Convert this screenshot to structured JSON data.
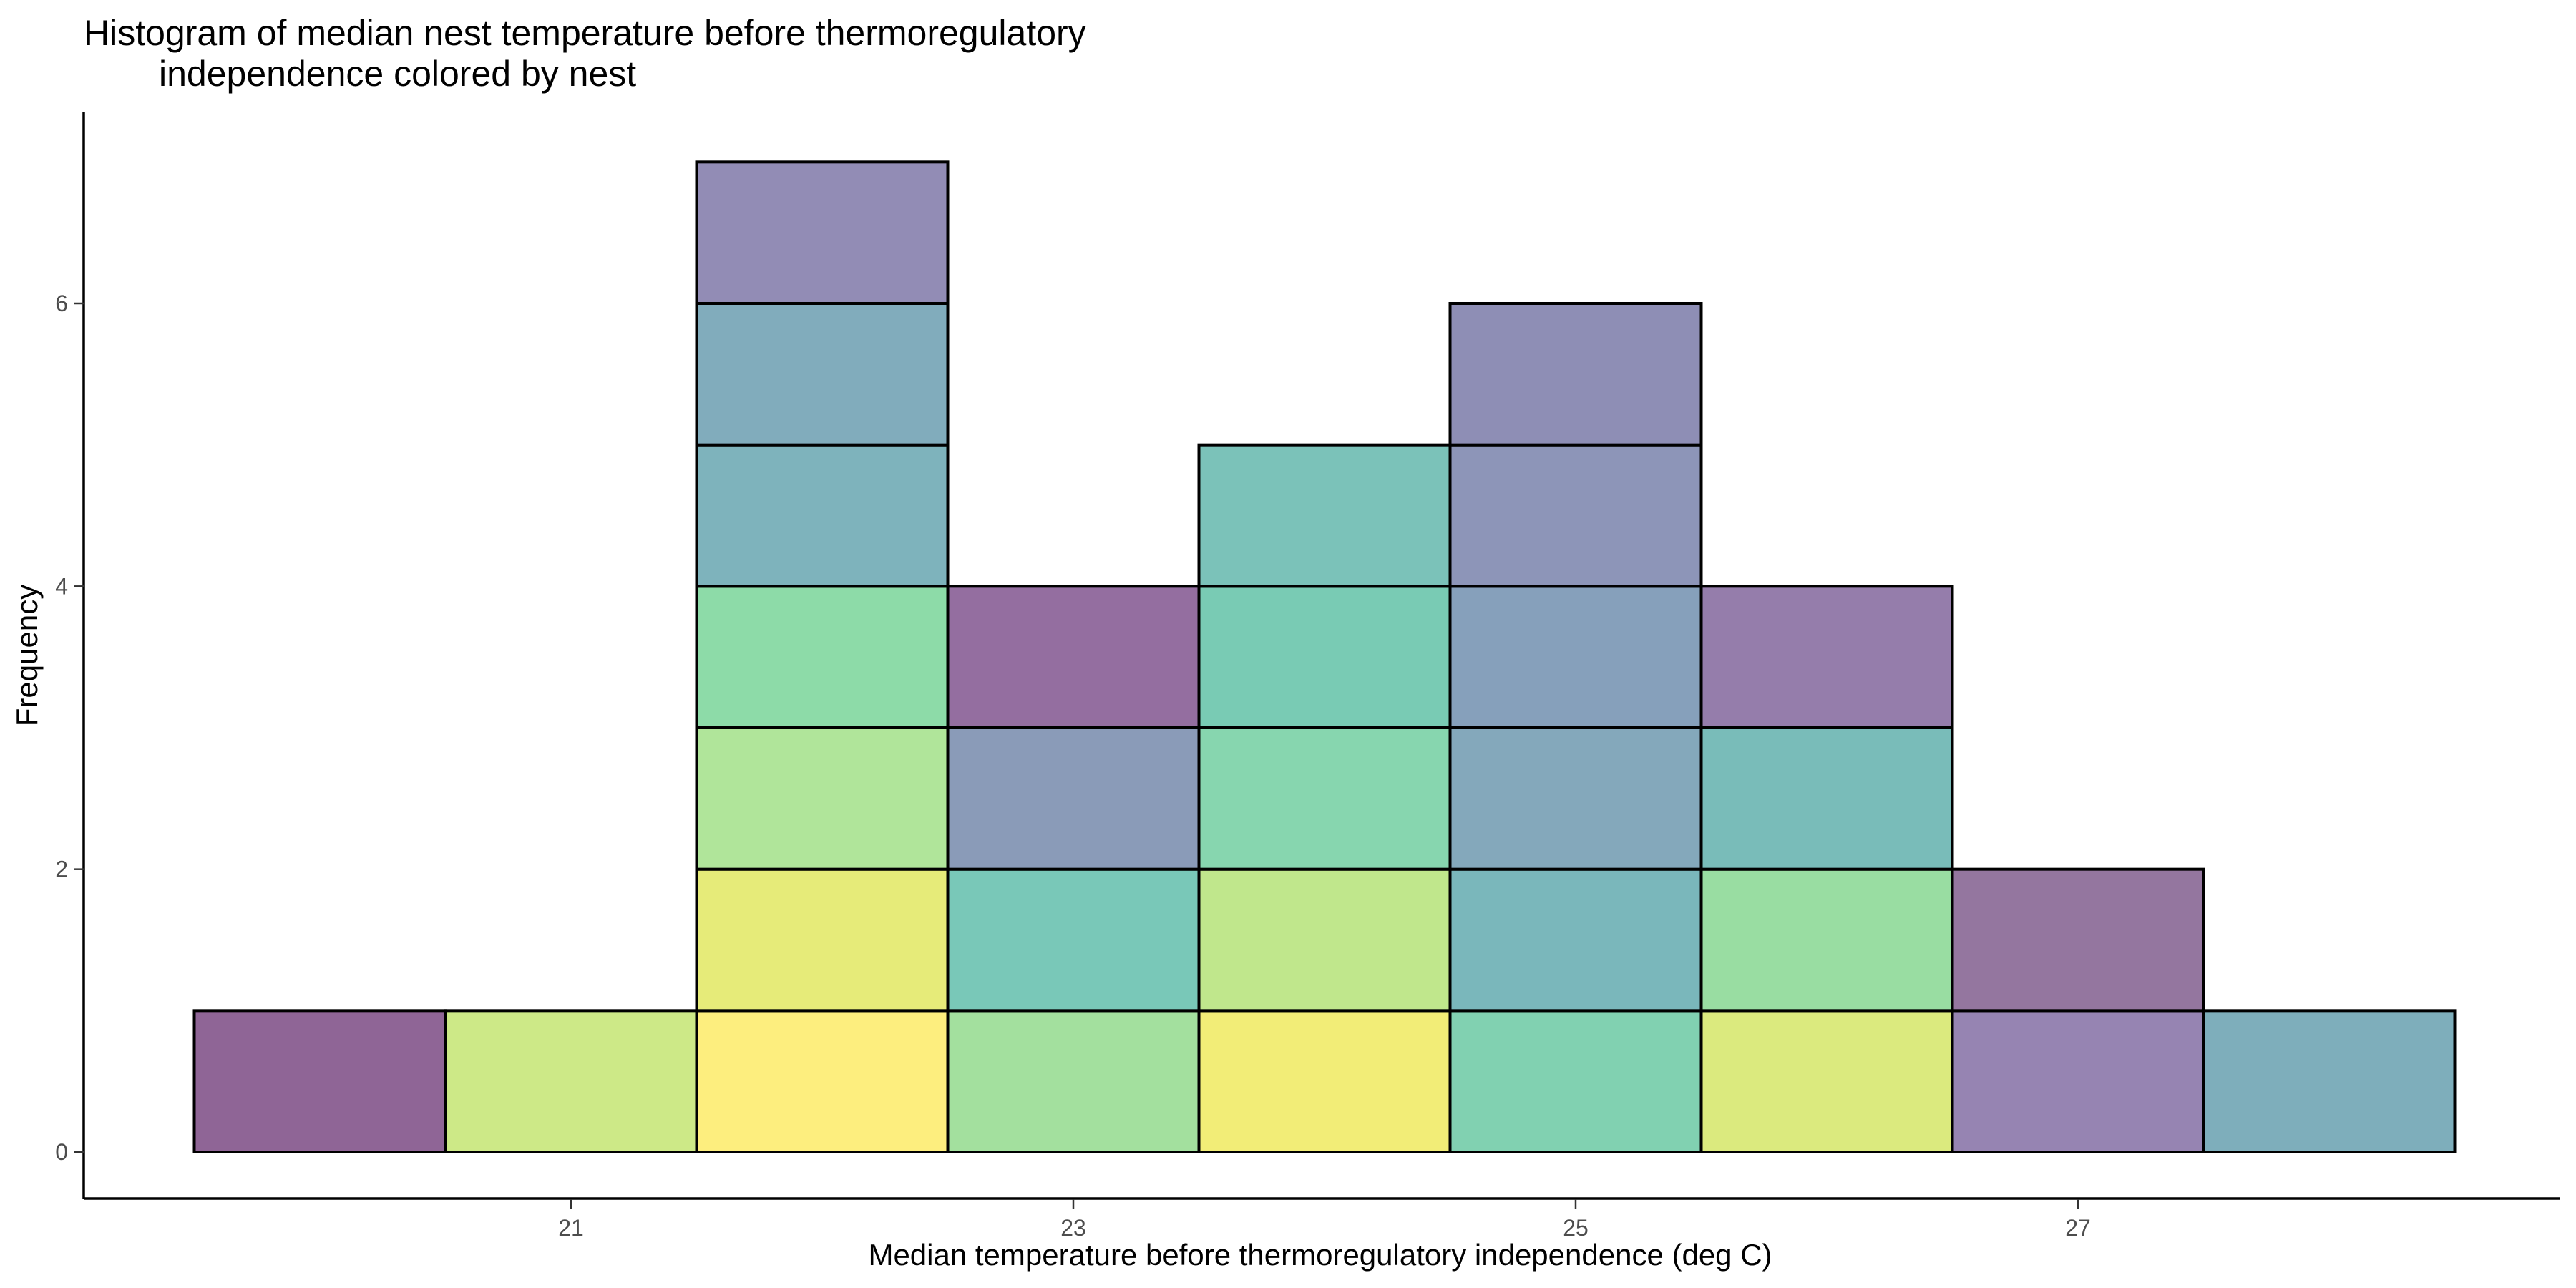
{
  "chart_data": {
    "type": "bar",
    "subtype": "stacked-histogram",
    "title_lines": [
      "Histogram of median nest temperature before thermoregulatory",
      "independence colored by nest"
    ],
    "xlabel": "Median temperature before thermoregulatory independence (deg C)",
    "ylabel": "Frequency",
    "x_ticks": [
      21,
      23,
      25,
      27
    ],
    "y_ticks": [
      0,
      2,
      4,
      6
    ],
    "xlim": [
      19.5,
      28.5
    ],
    "ylim": [
      0,
      7
    ],
    "bin_width": 1,
    "grid": false,
    "legend": "none",
    "bins": [
      {
        "center": 20,
        "count": 1,
        "segment_colors": [
          "#8f6596"
        ]
      },
      {
        "center": 21,
        "count": 1,
        "segment_colors": [
          "#cde987"
        ]
      },
      {
        "center": 22,
        "count": 7,
        "segment_colors": [
          "#fdee7e",
          "#e6eb79",
          "#b0e59a",
          "#8ddba8",
          "#7eb3bc",
          "#81acbc",
          "#928cb5"
        ]
      },
      {
        "center": 23,
        "count": 4,
        "segment_colors": [
          "#a3e09e",
          "#79c8b8",
          "#8a9bb8",
          "#946ea0"
        ]
      },
      {
        "center": 24,
        "count": 5,
        "segment_colors": [
          "#f2ed77",
          "#c0e78c",
          "#87d6af",
          "#79cbb4",
          "#7bc2b9"
        ]
      },
      {
        "center": 25,
        "count": 6,
        "segment_colors": [
          "#81d1b1",
          "#7ab7bb",
          "#84a8bb",
          "#86a0bb",
          "#8d95b8",
          "#8e8eb5"
        ]
      },
      {
        "center": 26,
        "count": 4,
        "segment_colors": [
          "#dbea7e",
          "#99dda2",
          "#79bcb9",
          "#957dab"
        ]
      },
      {
        "center": 27,
        "count": 2,
        "segment_colors": [
          "#9684b2",
          "#94769f"
        ]
      },
      {
        "center": 28,
        "count": 1,
        "segment_colors": [
          "#7eaebb"
        ]
      }
    ]
  }
}
